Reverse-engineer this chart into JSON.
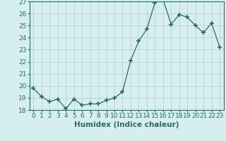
{
  "x": [
    0,
    1,
    2,
    3,
    4,
    5,
    6,
    7,
    8,
    9,
    10,
    11,
    12,
    13,
    14,
    15,
    16,
    17,
    18,
    19,
    20,
    21,
    22,
    23
  ],
  "y": [
    19.8,
    19.1,
    18.7,
    18.9,
    18.1,
    18.9,
    18.4,
    18.5,
    18.5,
    18.8,
    19.0,
    19.5,
    22.1,
    23.7,
    24.7,
    26.9,
    27.2,
    25.1,
    25.9,
    25.7,
    25.0,
    24.4,
    25.2,
    23.2
  ],
  "xlabel": "Humidex (Indice chaleur)",
  "ylim": [
    18,
    27
  ],
  "xlim": [
    -0.5,
    23.5
  ],
  "yticks": [
    18,
    19,
    20,
    21,
    22,
    23,
    24,
    25,
    26,
    27
  ],
  "xticks": [
    0,
    1,
    2,
    3,
    4,
    5,
    6,
    7,
    8,
    9,
    10,
    11,
    12,
    13,
    14,
    15,
    16,
    17,
    18,
    19,
    20,
    21,
    22,
    23
  ],
  "line_color": "#2e6b5e",
  "marker": "+",
  "marker_size": 4,
  "bg_color": "#d6eeee",
  "grid_color": "#b0cccc",
  "tick_label_fontsize": 6.5,
  "xlabel_fontsize": 7.5
}
